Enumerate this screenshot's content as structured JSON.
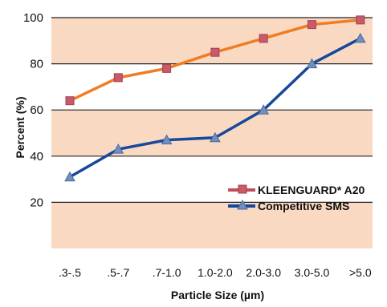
{
  "chart_data": {
    "type": "line",
    "xlabel": "Particle Size (µm)",
    "ylabel": "Percent  (%)",
    "categories": [
      ".3-.5",
      ".5-.7",
      ".7-1.0",
      "1.0-2.0",
      "2.0-3.0",
      "3.0-5.0",
      ">5.0"
    ],
    "yticks": [
      20,
      40,
      60,
      80,
      100
    ],
    "ylim": [
      0,
      100
    ],
    "grid": "horizontal bands",
    "legend_position": "bottom-right",
    "series": [
      {
        "name": "KLEENGUARD* A20",
        "color": "#f07d24",
        "marker_color": "#c85a6a",
        "marker": "square",
        "values": [
          64,
          74,
          78,
          85,
          91,
          97,
          99
        ]
      },
      {
        "name": "Competitive SMS",
        "color": "#17489a",
        "marker_color": "#6f8fbf",
        "marker": "triangle",
        "values": [
          31,
          43,
          47,
          48,
          60,
          80,
          91
        ]
      }
    ],
    "band_color": "#fad9c3"
  }
}
